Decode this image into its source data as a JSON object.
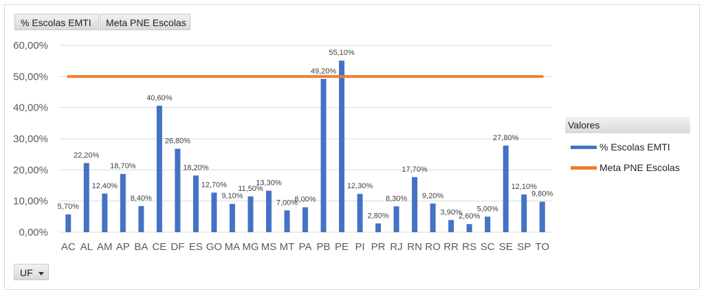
{
  "chart_data": {
    "type": "bar",
    "categories": [
      "AC",
      "AL",
      "AM",
      "AP",
      "BA",
      "CE",
      "DF",
      "ES",
      "GO",
      "MA",
      "MG",
      "MS",
      "MT",
      "PA",
      "PB",
      "PE",
      "PI",
      "PR",
      "RJ",
      "RN",
      "RO",
      "RR",
      "RS",
      "SC",
      "SE",
      "SP",
      "TO"
    ],
    "series": [
      {
        "name": "% Escolas EMTI",
        "type": "bar",
        "values": [
          5.7,
          22.2,
          12.4,
          18.7,
          8.4,
          40.6,
          26.8,
          18.2,
          12.7,
          9.1,
          11.5,
          13.3,
          7.0,
          8.0,
          49.2,
          55.1,
          12.3,
          2.8,
          8.3,
          17.7,
          9.2,
          3.9,
          2.6,
          5.0,
          27.8,
          12.1,
          9.8
        ],
        "labels": [
          "5,70%",
          "22,20%",
          "12,40%",
          "18,70%",
          "8,40%",
          "40,60%",
          "26,80%",
          "18,20%",
          "12,70%",
          "9,10%",
          "11,50%",
          "13,30%",
          "7,00%",
          "8,00%",
          "49,20%",
          "55,10%",
          "12,30%",
          "2,80%",
          "8,30%",
          "17,70%",
          "9,20%",
          "3,90%",
          "2,60%",
          "5,00%",
          "27,80%",
          "12,10%",
          "9,80%"
        ]
      },
      {
        "name": "Meta PNE Escolas",
        "type": "line",
        "value": 50
      }
    ],
    "ylim": [
      0,
      60
    ],
    "yticks": [
      0,
      10,
      20,
      30,
      40,
      50,
      60
    ],
    "ytick_labels": [
      "0,00%",
      "10,00%",
      "20,00%",
      "30,00%",
      "40,00%",
      "50,00%",
      "60,00%"
    ],
    "grid": true,
    "legend_title": "Valores",
    "legend_position": "right"
  },
  "field_buttons": {
    "series1": "% Escolas EMTI",
    "series2": "Meta PNE Escolas",
    "axis_field": "UF"
  },
  "colors": {
    "bar": "#4472c4",
    "line": "#ed7d31",
    "grid": "#d9d9d9",
    "text": "#595959"
  }
}
